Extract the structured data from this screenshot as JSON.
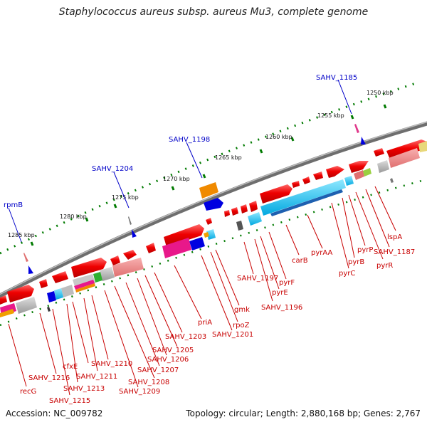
{
  "title": "Staphylococcus aureus subsp. aureus Mu3, complete genome",
  "footer": {
    "accession": "Accession: NC_009782",
    "topology": "Topology: circular; Length: 2,880,168 bp; Genes: 2,767"
  },
  "scale_labels": [
    "1250 kbp",
    "1255 kbp",
    "1260 kbp",
    "1265 kbp",
    "1270 kbp",
    "1275 kbp",
    "1280 kbp",
    "1285 kbp"
  ],
  "outer_gene_labels": [
    "SAHV_1185",
    "SAHV_1198",
    "SAHV_1204",
    "rpmB"
  ],
  "inner_gene_labels": [
    "lspA",
    "SAHV_1187",
    "pyrR",
    "pyrP",
    "pyrB",
    "pyrC",
    "pyrAA",
    "carB",
    "pyrF",
    "pyrE",
    "SAHV_1196",
    "SAHV_1197",
    "gmk",
    "rpoZ",
    "SAHV_1201",
    "priA",
    "SAHV_1203",
    "SAHV_1205",
    "SAHV_1206",
    "SAHV_1207",
    "SAHV_1208",
    "SAHV_1209",
    "SAHV_1210",
    "SAHV_1211",
    "SAHV_1213",
    "cfxE",
    "SAHV_1215",
    "SAHV_1216",
    "recG"
  ],
  "colors": {
    "gene_forward": "#ee0000",
    "label_red": "#c80000",
    "label_blue": "#0000c8",
    "tick_green": "#007a00",
    "backbone": "#777777"
  }
}
